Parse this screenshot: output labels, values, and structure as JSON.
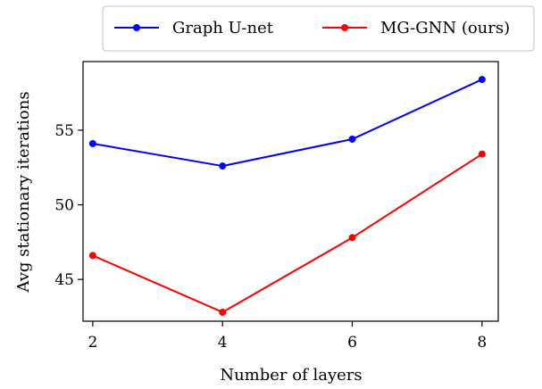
{
  "chart_data": {
    "type": "line",
    "title": "",
    "xlabel": "Number of layers",
    "ylabel": "Avg stationary iterations",
    "x": [
      2,
      4,
      6,
      8
    ],
    "xticks": [
      2,
      4,
      6,
      8
    ],
    "yticks": [
      45,
      50,
      55
    ],
    "xlim": [
      1.85,
      8.25
    ],
    "ylim": [
      42.2,
      59.6
    ],
    "grid": false,
    "legend_position": "top, above plot",
    "series": [
      {
        "name": "Graph U-net",
        "color": "#0000ff",
        "values": [
          54.1,
          52.6,
          54.4,
          58.4
        ]
      },
      {
        "name": "MG-GNN (ours)",
        "color": "#ff0000",
        "values": [
          46.6,
          42.8,
          47.8,
          53.4
        ]
      }
    ]
  }
}
